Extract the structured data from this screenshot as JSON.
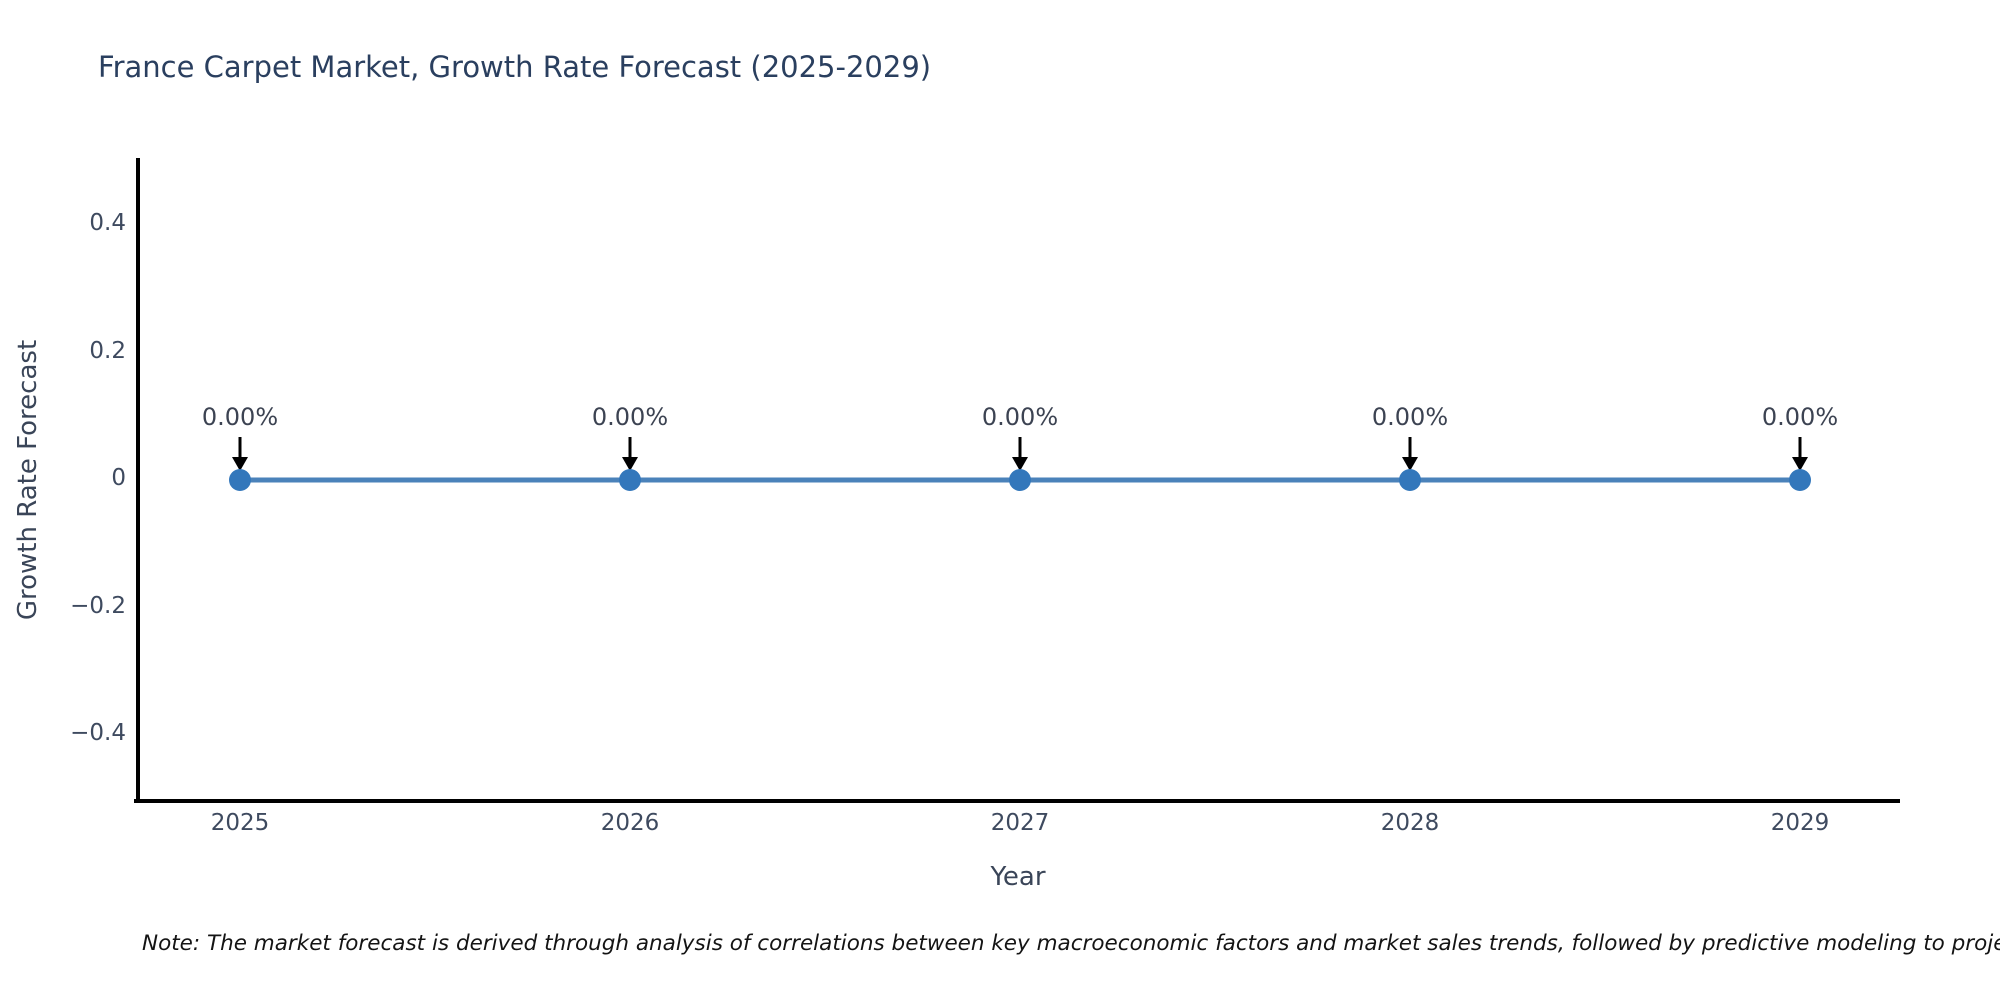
{
  "page": {
    "background": "#ffffff"
  },
  "chart_data": {
    "type": "line",
    "title": "France Carpet Market, Growth Rate Forecast (2025-2029)",
    "xlabel": "Year",
    "ylabel": "Growth Rate Forecast",
    "categories": [
      "2025",
      "2026",
      "2027",
      "2028",
      "2029"
    ],
    "series": [
      {
        "name": "Growth Rate Forecast",
        "values": [
          0,
          0,
          0,
          0,
          0
        ]
      }
    ],
    "point_labels": [
      "0.00%",
      "0.00%",
      "0.00%",
      "0.00%",
      "0.00%"
    ],
    "yticks": [
      0.4,
      0.2,
      0,
      -0.2,
      -0.4
    ],
    "ytick_labels": [
      "0.4",
      "0.2",
      "0",
      "−0.2",
      "−0.4"
    ],
    "ylim": [
      -0.5,
      0.5
    ],
    "grid": false,
    "legend": false,
    "line_color": "#4a82ba",
    "marker_color": "#3377bb",
    "arrow_color": "#000000",
    "axis_color": "#000000",
    "title_color": "#2a3f5f"
  },
  "note": {
    "text": "Note: The market forecast is derived through analysis of correlations between key macroeconomic factors and market sales trends, followed by predictive modeling to project future sa"
  }
}
